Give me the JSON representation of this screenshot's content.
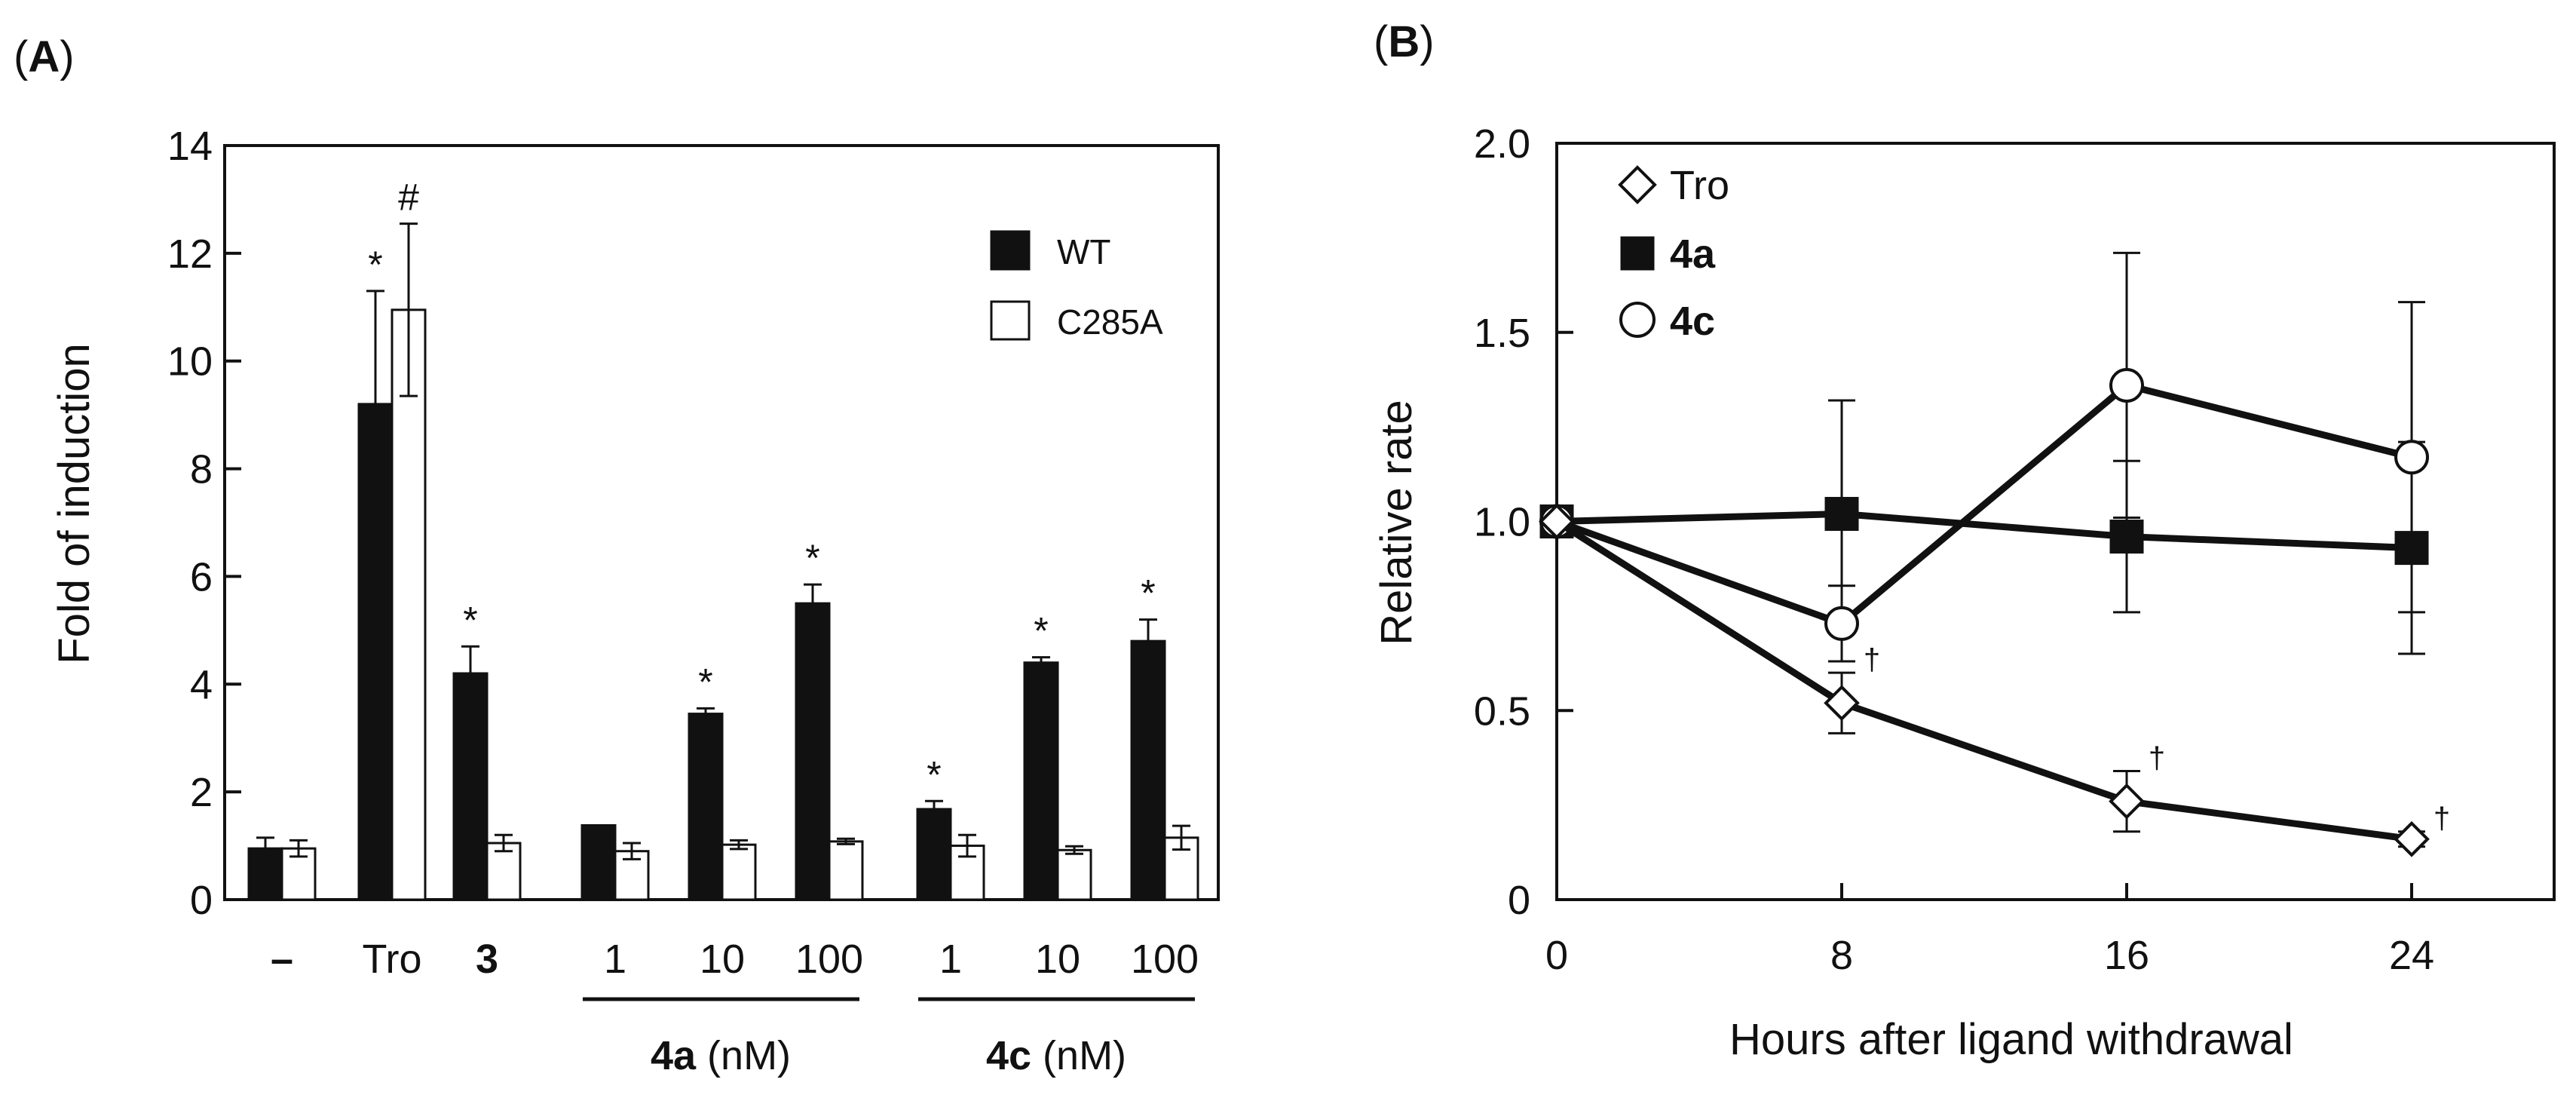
{
  "colors": {
    "ink": "#111111",
    "wt_fill": "#111111",
    "mutant_fill": "#ffffff"
  },
  "panel_a": {
    "label_open": "(",
    "label_letter": "A",
    "label_close": ")",
    "ylabel": "Fold of induction",
    "yticks": [
      "0",
      "2",
      "4",
      "6",
      "8",
      "10",
      "12",
      "14"
    ],
    "group_labels": [
      "–",
      "Tro",
      "3",
      "1",
      "10",
      "100",
      "1",
      "10",
      "100"
    ],
    "bracket_labels": [
      {
        "compound": "4a",
        "unit": " (nM)"
      },
      {
        "compound": "4c",
        "unit": " (nM)"
      }
    ],
    "legend": [
      {
        "label": "WT"
      },
      {
        "label": "C285A"
      }
    ]
  },
  "panel_b": {
    "label_open": "(",
    "label_letter": "B",
    "label_close": ")",
    "ylabel": "Relative rate",
    "xlabel": "Hours after ligand withdrawal",
    "yticks": [
      "0",
      "0.5",
      "1.0",
      "1.5",
      "2.0"
    ],
    "xticks": [
      "0",
      "8",
      "16",
      "24"
    ],
    "legend": [
      {
        "label": "Tro"
      },
      {
        "label": "4a"
      },
      {
        "label": "4c"
      }
    ]
  },
  "chart_data": [
    {
      "type": "bar",
      "title": "(A)",
      "ylabel": "Fold of induction",
      "xlabel": "",
      "ylim": [
        0,
        14
      ],
      "categories": [
        "–",
        "Tro",
        "3",
        "4a 1 nM",
        "4a 10 nM",
        "4a 100 nM",
        "4c 1 nM",
        "4c 10 nM",
        "4c 100 nM"
      ],
      "series": [
        {
          "name": "WT",
          "values": [
            0.95,
            9.2,
            4.2,
            1.38,
            3.45,
            5.5,
            1.68,
            4.4,
            4.8
          ],
          "errors": [
            0.2,
            2.1,
            0.5,
            0,
            0.1,
            0.35,
            0.15,
            0.1,
            0.4
          ],
          "annotations": [
            "",
            "*",
            "*",
            "",
            "*",
            "*",
            "*",
            "*",
            "*"
          ]
        },
        {
          "name": "C285A",
          "values": [
            0.95,
            10.95,
            1.05,
            0.9,
            1.02,
            1.08,
            1.0,
            0.92,
            1.15
          ],
          "errors": [
            0.15,
            1.6,
            0.15,
            0.15,
            0.08,
            0.05,
            0.2,
            0.07,
            0.22
          ],
          "annotations": [
            "",
            "#",
            "",
            "",
            "",
            "",
            "",
            "",
            ""
          ]
        }
      ],
      "legend": "top-right"
    },
    {
      "type": "line",
      "title": "(B)",
      "xlabel": "Hours after ligand withdrawal",
      "ylabel": "Relative rate",
      "xlim": [
        0,
        28
      ],
      "ylim": [
        0,
        2.0
      ],
      "x": [
        0,
        8,
        16,
        24
      ],
      "series": [
        {
          "name": "Tro",
          "marker": "open-diamond",
          "values": [
            1.0,
            0.52,
            0.26,
            0.16
          ],
          "errors": [
            0.04,
            0.08,
            0.08,
            0.02
          ],
          "annotations": [
            "",
            "†",
            "†",
            "†"
          ]
        },
        {
          "name": "4a",
          "marker": "filled-square",
          "values": [
            1.0,
            1.02,
            0.96,
            0.93
          ],
          "errors": [
            0.04,
            0.3,
            0.2,
            0.28
          ],
          "annotations": [
            "",
            "",
            "",
            ""
          ]
        },
        {
          "name": "4c",
          "marker": "open-circle",
          "values": [
            1.0,
            0.73,
            1.36,
            1.17
          ],
          "errors": [
            0.04,
            0.1,
            0.35,
            0.41
          ],
          "annotations": [
            "",
            "",
            "",
            ""
          ]
        }
      ],
      "legend": "top-left"
    }
  ]
}
